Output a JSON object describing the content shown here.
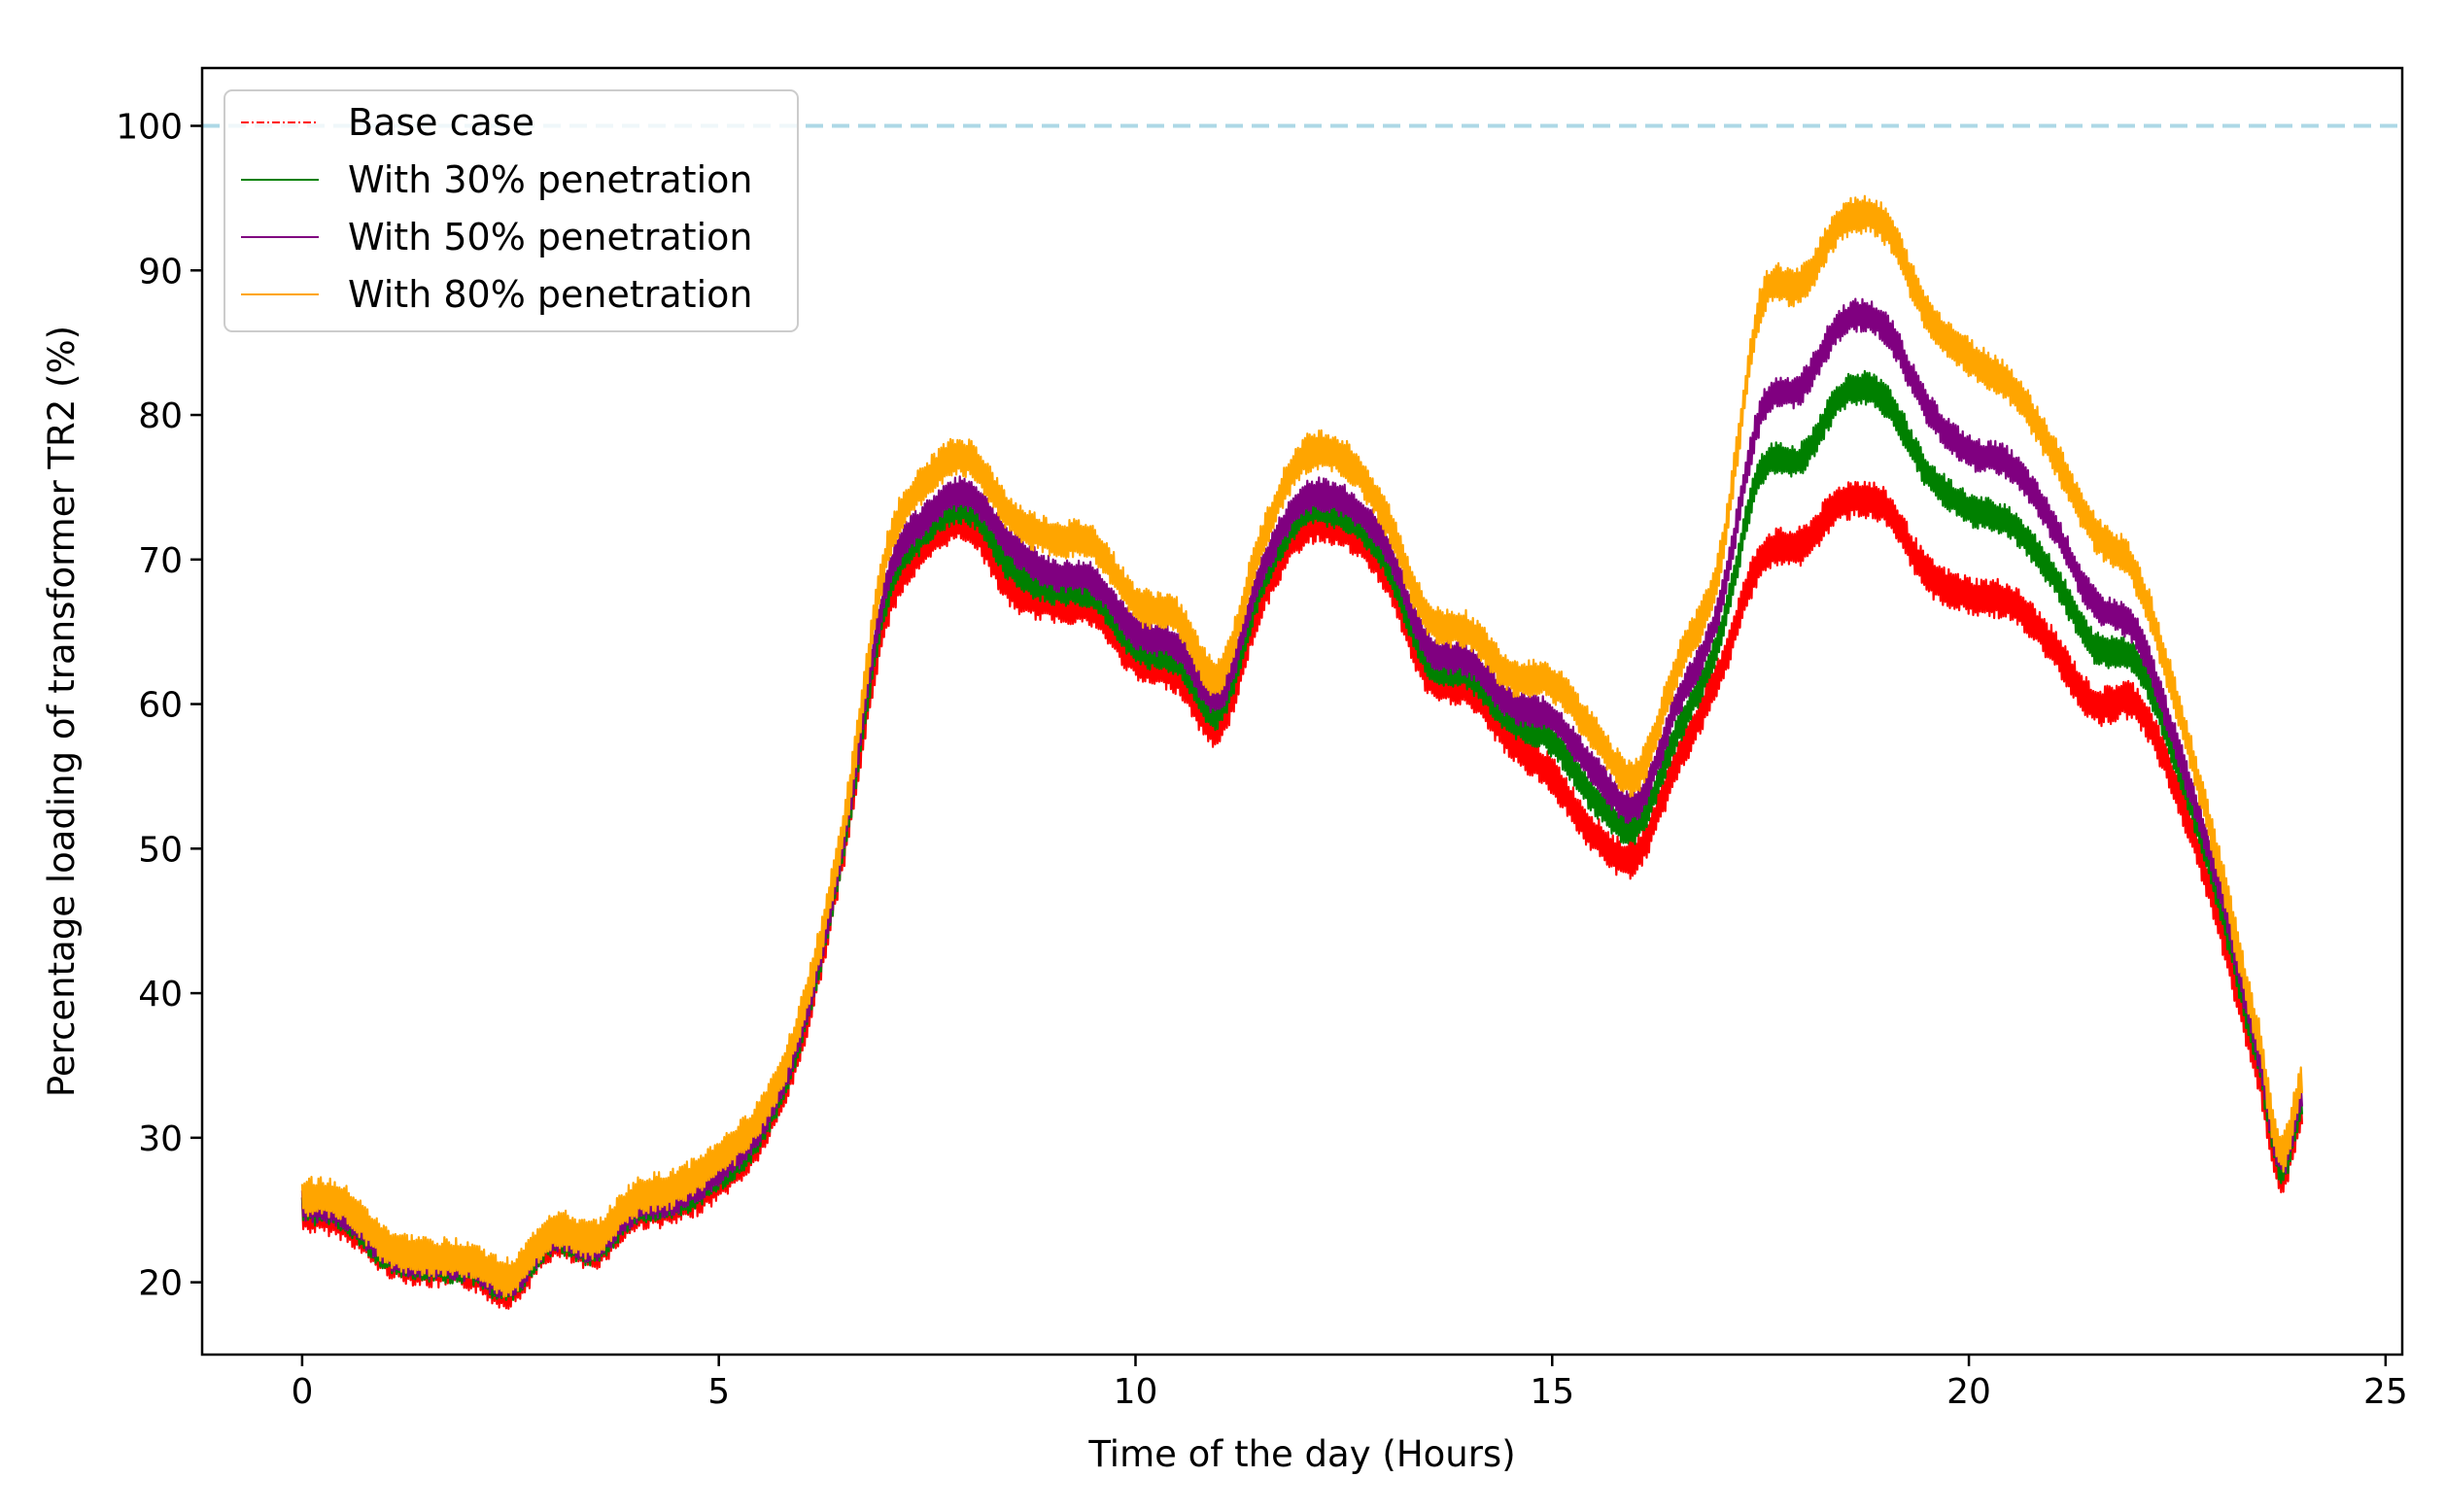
{
  "chart_data": {
    "type": "line",
    "title": "",
    "xlabel": "Time of the day (Hours)",
    "ylabel": "Percentage loading of transformer TR2 (%)",
    "xlim": [
      -1.2,
      25.2
    ],
    "ylim": [
      15,
      104
    ],
    "xticks": [
      0,
      5,
      10,
      15,
      20,
      25
    ],
    "yticks": [
      20,
      30,
      40,
      50,
      60,
      70,
      80,
      90,
      100
    ],
    "reference_line": {
      "y": 100,
      "color": "#add8e6",
      "style": "dashed"
    },
    "legend": {
      "position": "top-left"
    },
    "x": [
      0,
      0.5,
      1,
      1.5,
      2,
      2.5,
      3,
      3.5,
      4,
      4.5,
      5,
      5.5,
      6,
      6.5,
      7,
      7.5,
      8,
      8.5,
      9,
      9.5,
      10,
      10.5,
      11,
      11.5,
      12,
      12.5,
      13,
      13.5,
      14,
      14.5,
      15,
      15.5,
      16,
      16.5,
      17,
      17.5,
      18,
      18.5,
      19,
      19.5,
      20,
      20.5,
      21,
      21.5,
      22,
      22.5,
      23,
      23.5,
      23.75,
      24
    ],
    "series": [
      {
        "name": "Base case",
        "color": "#ff0000",
        "band": 1.4,
        "values": [
          24.8,
          24.2,
          21.8,
          21.0,
          20.8,
          19.6,
          22.8,
          22.2,
          24.8,
          25.3,
          27.0,
          30.0,
          37.0,
          50.0,
          66.0,
          71.0,
          72.5,
          68.0,
          67.0,
          66.5,
          63.0,
          62.0,
          58.5,
          67.0,
          72.0,
          72.0,
          69.0,
          62.0,
          61.0,
          57.5,
          55.0,
          51.0,
          49.5,
          56.0,
          62.0,
          70.0,
          71.0,
          74.0,
          73.5,
          69.0,
          67.5,
          67.0,
          64.0,
          60.0,
          60.0,
          54.0,
          45.0,
          34.0,
          27.5,
          32.0
        ]
      },
      {
        "name": "With 30% penetration",
        "color": "#008000",
        "band": 1.2,
        "values": [
          25.2,
          24.6,
          22.0,
          21.2,
          21.0,
          19.8,
          23.0,
          22.4,
          25.0,
          25.6,
          27.4,
          30.4,
          37.4,
          50.4,
          67.0,
          72.0,
          73.5,
          69.5,
          68.0,
          67.5,
          64.0,
          63.0,
          59.5,
          68.0,
          73.0,
          73.0,
          70.0,
          63.0,
          62.0,
          59.0,
          57.5,
          53.5,
          51.5,
          58.0,
          64.5,
          76.0,
          77.0,
          81.5,
          81.0,
          76.0,
          73.5,
          72.5,
          69.0,
          64.0,
          63.0,
          56.0,
          46.5,
          35.0,
          28.0,
          32.5
        ]
      },
      {
        "name": "With 50% penetration",
        "color": "#800080",
        "band": 1.2,
        "values": [
          25.4,
          24.8,
          22.2,
          21.4,
          21.2,
          20.0,
          23.2,
          22.6,
          25.2,
          25.9,
          27.8,
          30.8,
          37.8,
          50.8,
          68.0,
          73.0,
          74.5,
          71.0,
          69.0,
          68.5,
          65.0,
          64.0,
          60.5,
          69.0,
          74.0,
          74.0,
          71.0,
          64.0,
          63.0,
          60.0,
          59.0,
          55.5,
          53.0,
          60.0,
          66.5,
          80.0,
          82.0,
          86.5,
          86.0,
          80.5,
          77.5,
          76.5,
          72.5,
          67.0,
          65.0,
          57.0,
          47.5,
          35.5,
          28.5,
          33.0
        ]
      },
      {
        "name": "With 80% penetration",
        "color": "#ffa500",
        "band": 1.4,
        "values": [
          26.0,
          25.4,
          22.6,
          21.8,
          21.6,
          20.4,
          23.6,
          23.0,
          25.8,
          26.6,
          28.6,
          31.6,
          38.6,
          51.6,
          70.0,
          75.5,
          77.0,
          73.0,
          71.5,
          71.0,
          67.0,
          66.0,
          62.0,
          71.0,
          77.0,
          77.0,
          73.0,
          66.0,
          65.0,
          62.0,
          61.5,
          58.0,
          55.0,
          62.5,
          69.5,
          87.5,
          89.0,
          93.5,
          93.0,
          87.0,
          84.0,
          82.0,
          77.5,
          72.0,
          69.0,
          60.0,
          49.0,
          36.5,
          29.0,
          34.0
        ]
      }
    ]
  }
}
